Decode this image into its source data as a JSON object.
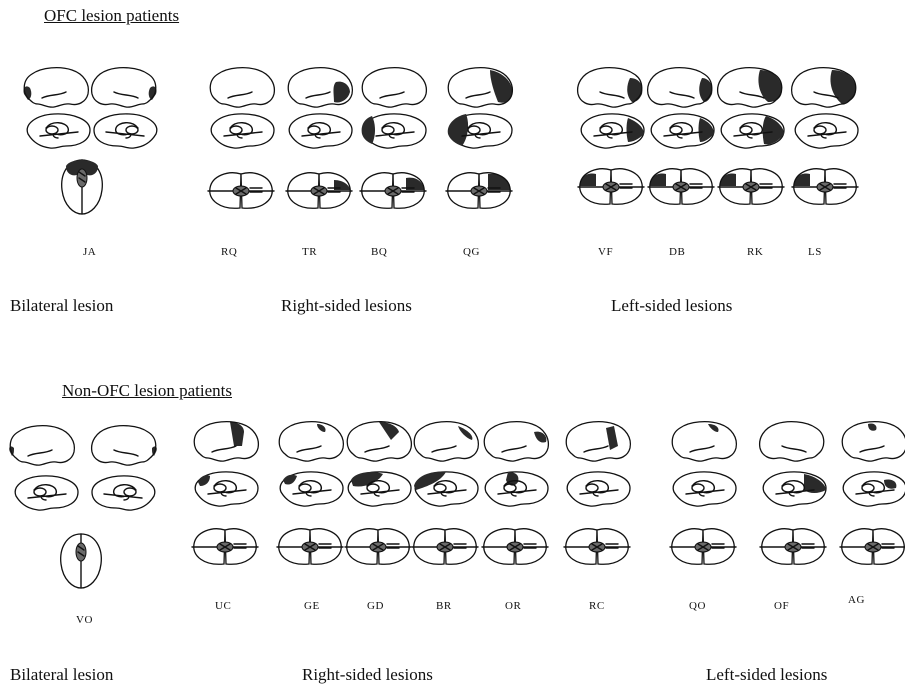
{
  "sections": [
    {
      "title": "OFC lesion patients",
      "groups": [
        {
          "caption": "Bilateral lesion",
          "patients": [
            "JA"
          ]
        },
        {
          "caption": "Right-sided lesions",
          "patients": [
            "RQ",
            "TR",
            "BQ",
            "QG"
          ]
        },
        {
          "caption": "Left-sided lesions",
          "patients": [
            "VF",
            "DB",
            "RK",
            "LS"
          ]
        }
      ]
    },
    {
      "title": "Non-OFC lesion patients",
      "groups": [
        {
          "caption": "Bilateral lesion",
          "patients": [
            "VO"
          ]
        },
        {
          "caption": "Right-sided lesions",
          "patients": [
            "UC",
            "GE",
            "GD",
            "BR",
            "OR",
            "RC"
          ]
        },
        {
          "caption": "Left-sided lesions",
          "patients": [
            "QO",
            "OF",
            "AG"
          ]
        }
      ]
    }
  ],
  "colors": {
    "lesion": "#2a2a2a",
    "lesion_light": "#6a6a6a",
    "outline": "#111111"
  }
}
